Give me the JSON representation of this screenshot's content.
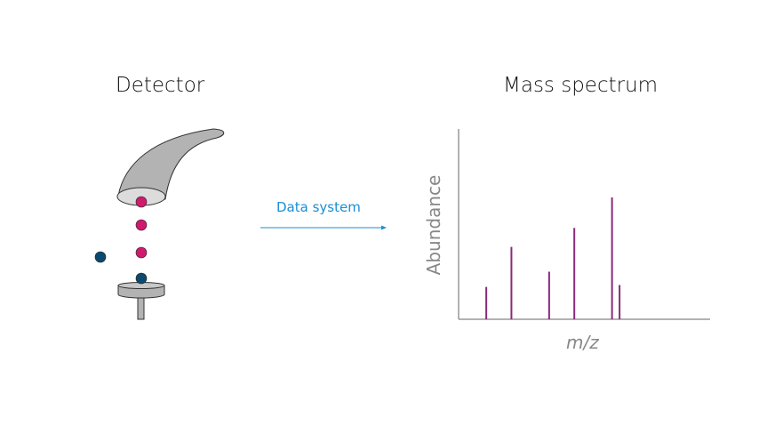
{
  "detector": {
    "title": "Detector"
  },
  "arrow": {
    "label": "Data system"
  },
  "spectrum": {
    "title": "Mass spectrum"
  },
  "colors": {
    "positive_ion": "#d01a6e",
    "neutral_ion": "#0b4a6e",
    "arrow": "#1a8fd6",
    "peak": "#8b2a7a"
  },
  "chart_data": {
    "type": "bar",
    "title": "Mass spectrum",
    "xlabel": "m/z",
    "ylabel": "Abundance",
    "xlim": [
      0,
      100
    ],
    "ylim": [
      0,
      100
    ],
    "x": [
      11,
      21,
      36,
      46,
      61,
      64
    ],
    "values": [
      17,
      38,
      25,
      48,
      64,
      18
    ]
  }
}
